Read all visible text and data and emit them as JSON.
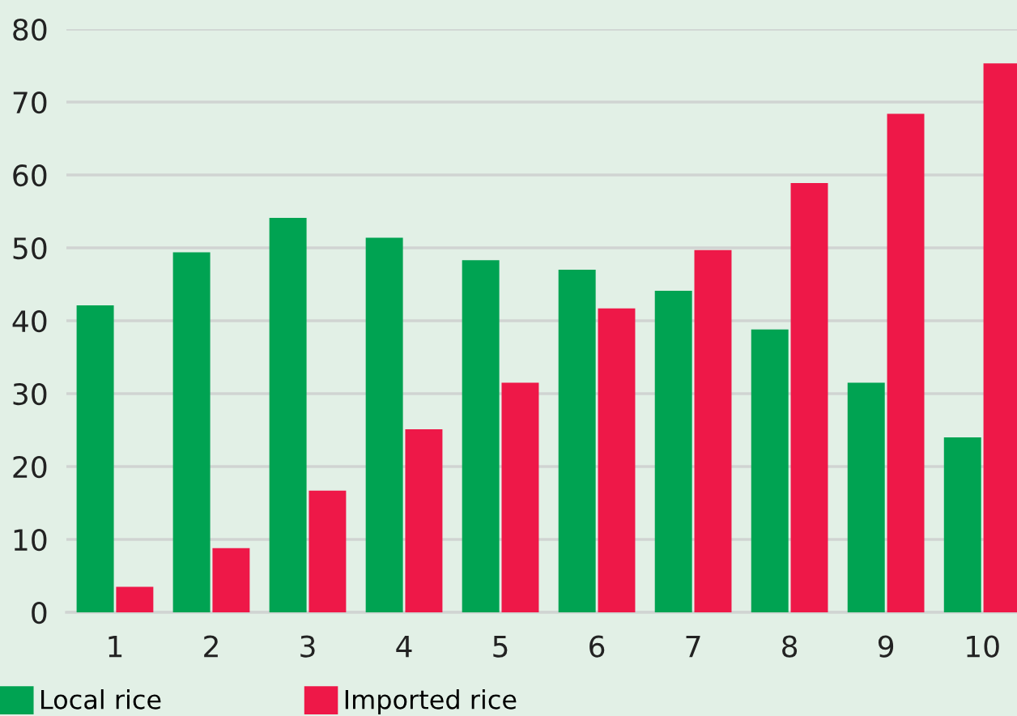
{
  "chart_data": {
    "type": "bar",
    "categories": [
      "1",
      "2",
      "3",
      "4",
      "5",
      "6",
      "7",
      "8",
      "9",
      "10"
    ],
    "series": [
      {
        "name": "Local rice",
        "color": "#00a352",
        "values": [
          42.1,
          49.4,
          54.1,
          51.4,
          48.3,
          47.0,
          44.1,
          38.8,
          31.5,
          24.0
        ]
      },
      {
        "name": "Imported rice",
        "color": "#ee1848",
        "values": [
          3.5,
          8.8,
          16.7,
          25.1,
          31.5,
          41.7,
          49.7,
          58.9,
          68.4,
          75.3
        ]
      }
    ],
    "ylim": [
      0,
      80
    ],
    "yticks": [
      0,
      10,
      20,
      30,
      40,
      50,
      60,
      70,
      80
    ],
    "grid": "y",
    "legend": "bottom left"
  }
}
